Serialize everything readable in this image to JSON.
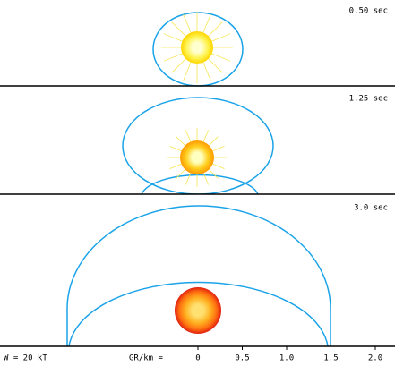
{
  "panels": [
    {
      "time": "0.50 sec"
    },
    {
      "time": "1.25 sec"
    },
    {
      "time": "3.0 sec"
    }
  ],
  "yield_label": "W = 20 kT",
  "axis": {
    "label": "GR/km =",
    "ticks": [
      "0",
      "0.5",
      "1.0",
      "1.5",
      "2.0"
    ]
  }
}
